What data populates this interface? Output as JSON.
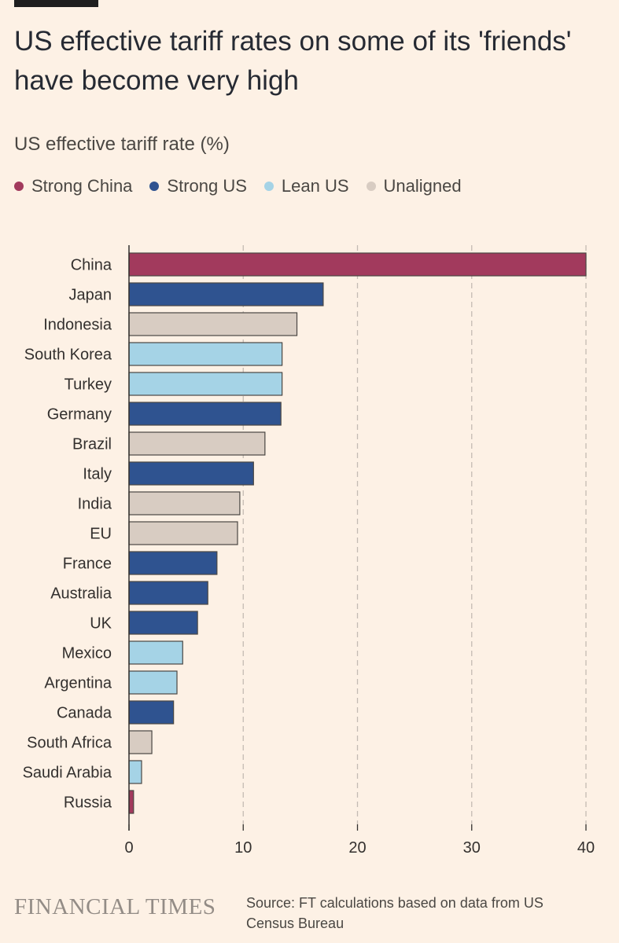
{
  "title": "US effective tariff rates on some of its 'friends' have become very high",
  "subtitle": "US effective tariff rate (%)",
  "legend": [
    {
      "label": "Strong China",
      "color": "#a23a5d"
    },
    {
      "label": "Strong US",
      "color": "#2f5390"
    },
    {
      "label": "Lean US",
      "color": "#a5d3e6"
    },
    {
      "label": "Unaligned",
      "color": "#d8ccc2"
    }
  ],
  "chart_data": {
    "type": "bar",
    "orientation": "horizontal",
    "xlim": [
      0,
      40
    ],
    "xticks": [
      0,
      10,
      20,
      30,
      40
    ],
    "grid": "vertical dashed",
    "legend_position": "top",
    "categories": [
      "China",
      "Japan",
      "Indonesia",
      "South Korea",
      "Turkey",
      "Germany",
      "Brazil",
      "Italy",
      "India",
      "EU",
      "France",
      "Australia",
      "UK",
      "Mexico",
      "Argentina",
      "Canada",
      "South Africa",
      "Saudi Arabia",
      "Russia"
    ],
    "values": [
      40,
      17,
      14.7,
      13.4,
      13.4,
      13.3,
      11.9,
      10.9,
      9.7,
      9.5,
      7.7,
      6.9,
      6.0,
      4.7,
      4.2,
      3.9,
      2.0,
      1.1,
      0.4
    ],
    "groups": [
      "Strong China",
      "Strong US",
      "Unaligned",
      "Lean US",
      "Lean US",
      "Strong US",
      "Unaligned",
      "Strong US",
      "Unaligned",
      "Unaligned",
      "Strong US",
      "Strong US",
      "Strong US",
      "Lean US",
      "Lean US",
      "Strong US",
      "Unaligned",
      "Lean US",
      "Strong China"
    ]
  },
  "footer": {
    "logo": "FINANCIAL TIMES",
    "source": "Source: FT calculations based on data from US Census Bureau"
  }
}
